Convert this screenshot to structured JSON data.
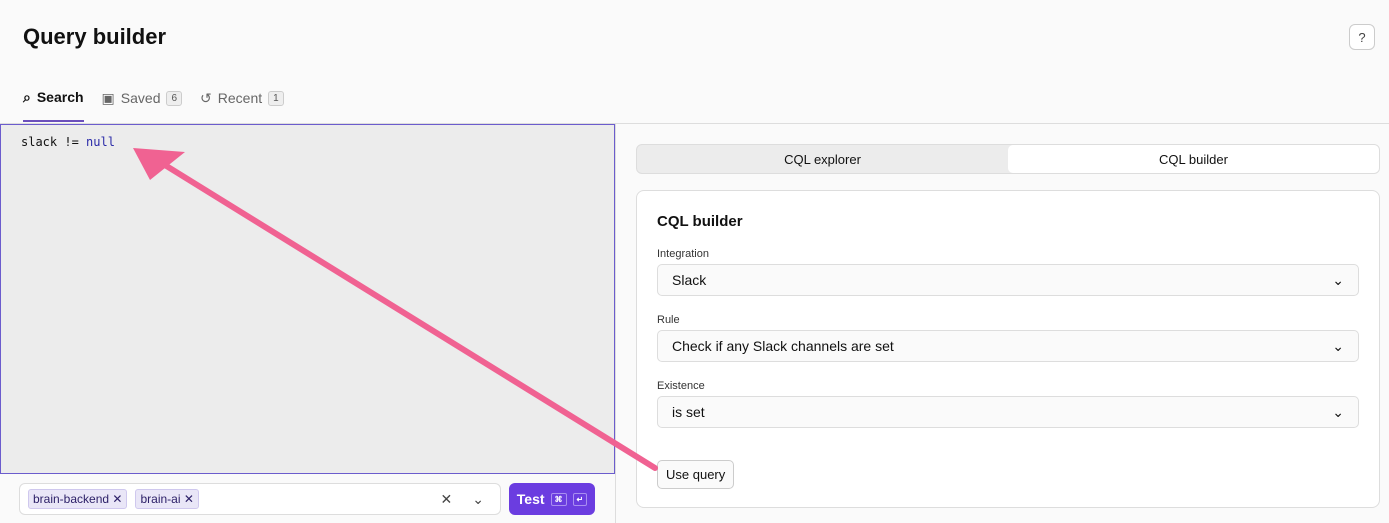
{
  "header": {
    "title": "Query builder",
    "help_icon": "?"
  },
  "tabs": [
    {
      "label": "Search",
      "icon": "search-icon"
    },
    {
      "label": "Saved",
      "count": "6",
      "icon": "save-icon"
    },
    {
      "label": "Recent",
      "count": "1",
      "icon": "history-icon"
    }
  ],
  "editor": {
    "code_prefix": "slack != ",
    "code_keyword": "null"
  },
  "filters": {
    "tags": [
      "brain-backend",
      "brain-ai"
    ],
    "remove": "✕",
    "clear": "✕",
    "dropdown": "⌄"
  },
  "test_button": {
    "label": "Test",
    "kbd1": "⌘",
    "kbd2": "↵"
  },
  "right": {
    "segments": [
      "CQL explorer",
      "CQL builder"
    ],
    "card_title": "CQL builder",
    "fields": [
      {
        "label": "Integration",
        "value": "Slack"
      },
      {
        "label": "Rule",
        "value": "Check if any Slack channels are set"
      },
      {
        "label": "Existence",
        "value": "is set"
      }
    ],
    "use_query": "Use query"
  },
  "colors": {
    "accent": "#6b3de0",
    "arrow": "#f06292"
  }
}
